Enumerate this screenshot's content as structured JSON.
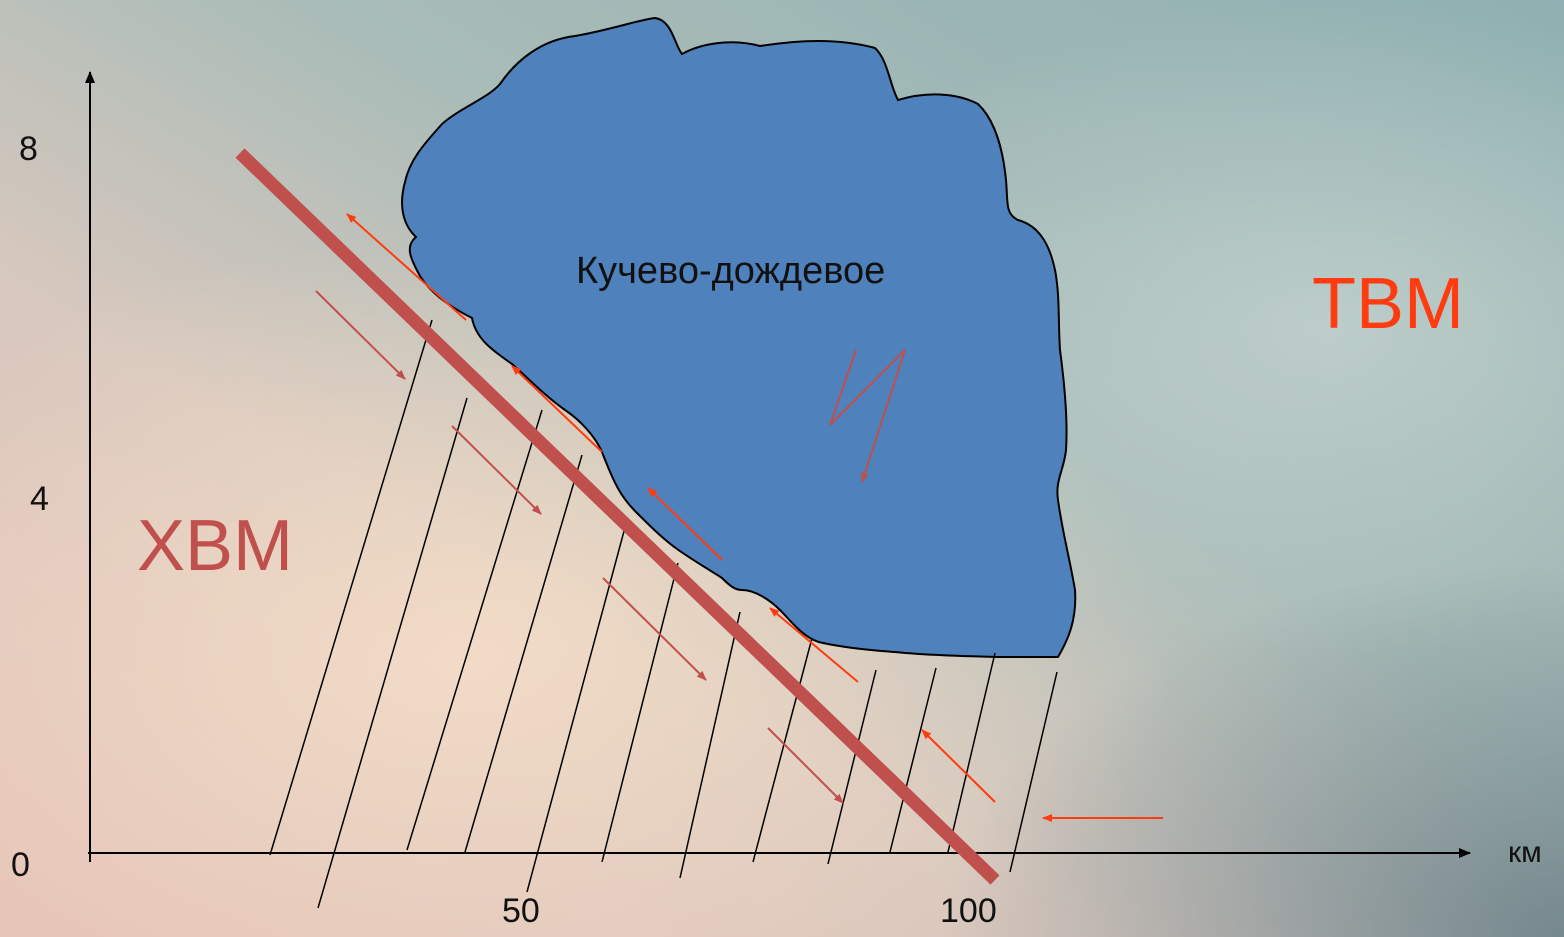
{
  "diagram": {
    "y_axis": {
      "ticks": [
        "8",
        "4",
        "0"
      ]
    },
    "x_axis": {
      "ticks": [
        "50",
        "100"
      ],
      "unit": "км"
    },
    "cloud": {
      "label": "Кучево-дождевое",
      "fill": "#4f81bd"
    },
    "cold_air_mass": {
      "label": "ХВМ",
      "color": "#c0504d"
    },
    "warm_air_mass": {
      "label": "ТВМ",
      "color": "#ff3b0f"
    },
    "front_color": "#c0504d",
    "warm_arrow_color": "#ff3b0f",
    "cold_arrow_color": "#c0504d"
  }
}
